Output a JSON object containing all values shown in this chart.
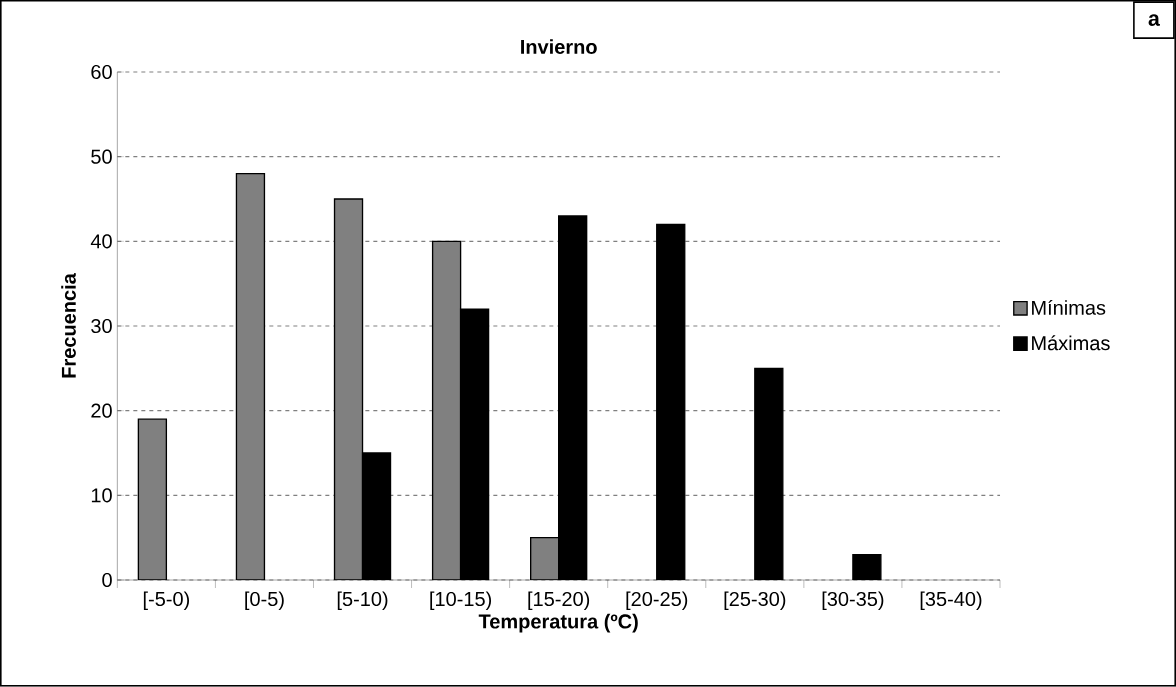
{
  "chart_data": {
    "type": "bar",
    "title": "Invierno",
    "xlabel": "Temperatura (ºC)",
    "ylabel": "Frecuencia",
    "categories": [
      "[-5-0)",
      "[0-5)",
      "[5-10)",
      "[10-15)",
      "[15-20)",
      "[20-25)",
      "[25-30)",
      "[30-35)",
      "[35-40)"
    ],
    "series": [
      {
        "name": "Mínimas",
        "color": "#808080",
        "values": [
          19,
          48,
          45,
          40,
          5,
          null,
          null,
          null,
          null
        ]
      },
      {
        "name": "Máximas",
        "color": "#000000",
        "values": [
          null,
          null,
          15,
          32,
          43,
          42,
          25,
          3,
          null
        ]
      }
    ],
    "ylim": [
      0,
      60
    ],
    "yticks": [
      0,
      10,
      20,
      30,
      40,
      50,
      60
    ],
    "grid": "y",
    "legend": "right",
    "annotations": [
      "a"
    ]
  }
}
